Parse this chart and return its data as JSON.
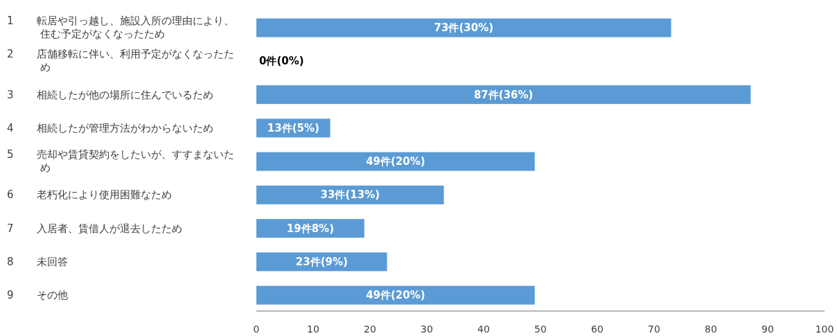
{
  "chart_data": {
    "type": "bar",
    "orientation": "horizontal",
    "categories": [
      "1 転居や引っ越し、施設入所の理由により、住む予定がなくなったため",
      "2 店舗移転に伴い、利用予定がなくなったため",
      "3 相続したが他の場所に住んでいるため",
      "4 相続したが管理方法がわからないため",
      "5 売却や賃貸契約をしたいが、すすまないため",
      "6 老朽化により使用困難なため",
      "7 入居者、賃借人が退去したため",
      "8 未回答",
      "9 その他"
    ],
    "values": [
      73,
      0,
      87,
      13,
      49,
      33,
      19,
      23,
      49
    ],
    "value_labels": [
      "73件(30%)",
      "0件(0%)",
      "87件(36%)",
      "13件(5%)",
      "49件(20%)",
      "33件(13%)",
      "19件8%)",
      "23件(9%)",
      "49件(20%)"
    ],
    "color": "#5b9bd5",
    "xlim": [
      0,
      100
    ],
    "xticks": [
      0,
      10,
      20,
      30,
      40,
      50,
      60,
      70,
      80,
      90,
      100
    ],
    "grid": false
  }
}
